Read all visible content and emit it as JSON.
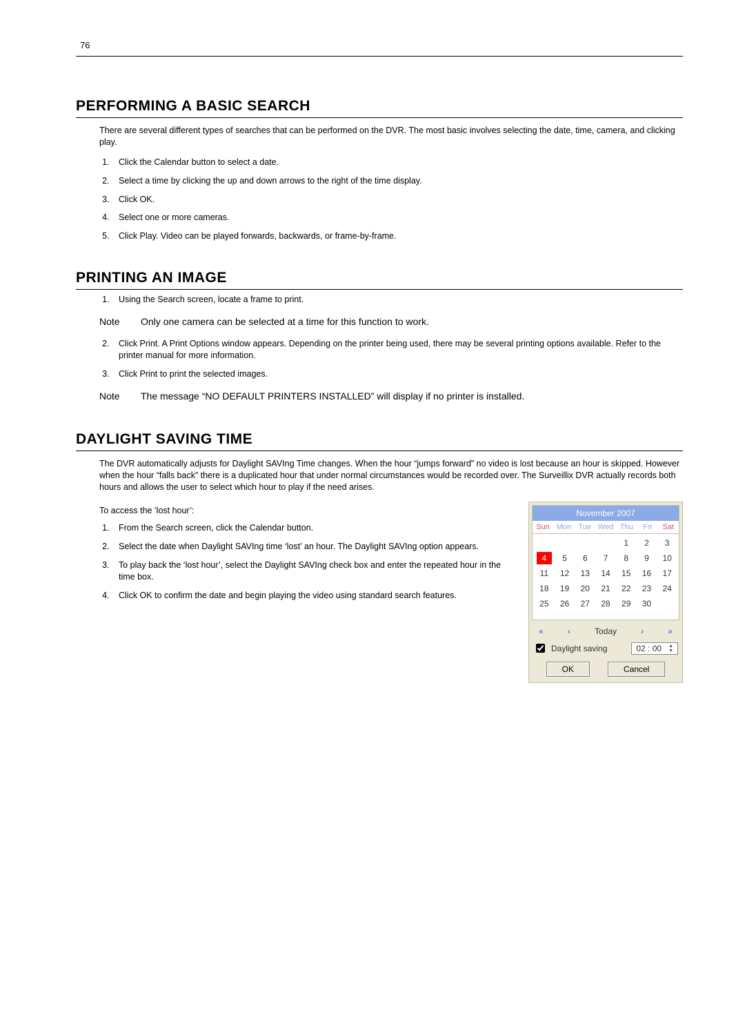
{
  "page_number": "76",
  "sections": {
    "basic_search": {
      "heading": "PERFORMING A BASIC SEARCH",
      "intro": "There are several different types of searches that can be performed on the DVR. The most basic involves selecting the date, time, camera, and clicking play.",
      "steps": [
        "Click the Calendar button to select a date.",
        "Select a time by clicking the up and down arrows to the right of the time display.",
        "Click OK.",
        "Select one or more cameras.",
        "Click Play.  Video can be played forwards, backwards, or frame-by-frame."
      ]
    },
    "printing": {
      "heading": "PRINTING AN IMAGE",
      "step1": "Using the Search screen, locate a frame to print.",
      "note1_label": "Note",
      "note1_text": "Only one camera can be selected at a time for this function to work.",
      "step2": "Click Print.  A Print Options window appears.  Depending on the printer being used, there may be several printing options available.  Refer to the printer manual for more information.",
      "step3": "Click Print to print the selected images.",
      "note2_label": "Note",
      "note2_text": "The message “NO DEFAULT PRINTERS INSTALLED” will display if no printer is installed."
    },
    "dst": {
      "heading": "DAYLIGHT SAVING TIME",
      "intro": "The DVR automatically adjusts for Daylight SAVIng Time changes.  When the hour “jumps forward” no video is lost because an hour is skipped.  However when the hour “falls back” there is a duplicated hour that under normal circumstances would be recorded over. The Surveillix DVR actually records both hours and allows the user to select which hour to play if the need arises.",
      "access_line": "To access the ‘lost hour’:",
      "steps": [
        "From the Search screen, click the Calendar button.",
        "Select the date when Daylight SAVIng time ‘lost’ an hour. The Daylight SAVIng option appears.",
        "To play back the ‘lost hour’, select the Daylight SAVIng check box and enter the repeated hour in the time box.",
        "Click OK to confirm the date and begin playing the video using standard search features."
      ]
    }
  },
  "calendar": {
    "title": "November 2007",
    "daynames": [
      "Sun",
      "Mon",
      "Tue",
      "Wed",
      "Thu",
      "Fri",
      "Sat"
    ],
    "cells": [
      "",
      "",
      "",
      "",
      "1",
      "2",
      "3",
      "4",
      "5",
      "6",
      "7",
      "8",
      "9",
      "10",
      "11",
      "12",
      "13",
      "14",
      "15",
      "16",
      "17",
      "18",
      "19",
      "20",
      "21",
      "22",
      "23",
      "24",
      "25",
      "26",
      "27",
      "28",
      "29",
      "30",
      ""
    ],
    "selected_index": 7,
    "today_label": "Today",
    "dst_checkbox_label": "Daylight saving",
    "time_value": "02 : 00",
    "ok_label": "OK",
    "cancel_label": "Cancel",
    "colors": {
      "widget_bg": "#ece9d8",
      "header_bg": "#8caae6",
      "selected_bg": "#ff0000",
      "weekend_text": "#d4536b",
      "dayname_text": "#8caae6"
    }
  }
}
